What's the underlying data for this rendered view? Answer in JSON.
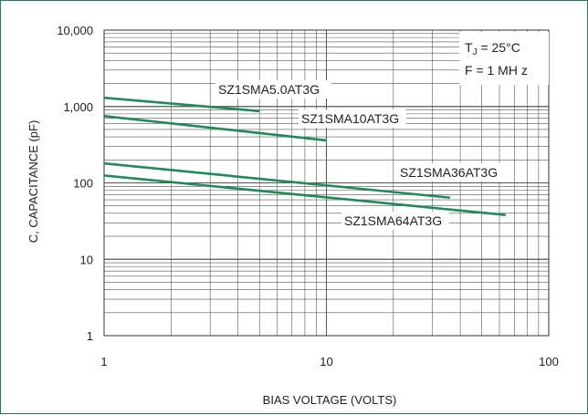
{
  "chart_data": {
    "type": "line",
    "xlabel": "BIAS VOLTAGE (VOLTS)",
    "ylabel": "C, CAPACITANCE (pF)",
    "x_scale": "log",
    "y_scale": "log",
    "xlim": [
      1,
      100
    ],
    "ylim": [
      1,
      10000
    ],
    "x_ticks": [
      {
        "value": 1,
        "label": "1"
      },
      {
        "value": 10,
        "label": "10"
      },
      {
        "value": 100,
        "label": "100"
      }
    ],
    "y_ticks": [
      {
        "value": 1,
        "label": "1"
      },
      {
        "value": 10,
        "label": "10"
      },
      {
        "value": 100,
        "label": "100"
      },
      {
        "value": 1000,
        "label": "1,000"
      },
      {
        "value": 10000,
        "label": "10,000"
      }
    ],
    "grid": true,
    "line_color": "#1f8a5a",
    "conditions": {
      "tj_main": "T",
      "tj_sub": "J",
      "tj_rest": " = 25°C",
      "freq": "F = 1 MH z"
    },
    "series": [
      {
        "name": "SZ1SMA5.0AT3G",
        "x": [
          1,
          5
        ],
        "y": [
          1300,
          870
        ]
      },
      {
        "name": "SZ1SMA10AT3G",
        "x": [
          1,
          10
        ],
        "y": [
          750,
          360
        ]
      },
      {
        "name": "SZ1SMA36AT3G",
        "x": [
          1,
          36
        ],
        "y": [
          180,
          64
        ]
      },
      {
        "name": "SZ1SMA64AT3G",
        "x": [
          1,
          64
        ],
        "y": [
          125,
          38
        ]
      }
    ]
  }
}
